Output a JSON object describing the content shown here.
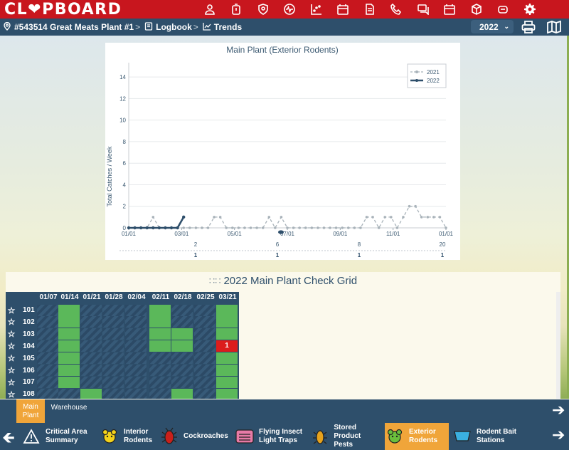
{
  "app": {
    "logo_text": "CL❤PBOARD"
  },
  "topbar": {
    "icons": [
      "person-icon",
      "timer-icon",
      "shield-icon",
      "pulse-icon",
      "scatter-chart-icon",
      "calendar-folder-icon",
      "document-icon",
      "phone-icon",
      "chat-icon",
      "calendar-icon",
      "cube-icon",
      "stack-icon",
      "gear-icon"
    ]
  },
  "breadcrumb": {
    "location": "#543514 Great Meats Plant #1",
    "logbook": "Logbook",
    "trends": "Trends",
    "separator": ">"
  },
  "year_select": {
    "value": "2022"
  },
  "chart": {
    "title": "Main Plant (Exterior Rodents)",
    "ylabel": "Total Catches / Week",
    "y_ticks": [
      "0",
      "2",
      "4",
      "6",
      "8",
      "10",
      "12",
      "14"
    ],
    "x_ticks": [
      "01/01",
      "03/01",
      "05/01",
      "07/01",
      "09/01",
      "11/01",
      "01/01"
    ],
    "extra_ticks": [
      "2",
      "6",
      "8",
      "20"
    ],
    "extra_values": [
      "1",
      "1",
      "1",
      "1"
    ],
    "legend": [
      "2021",
      "2022"
    ]
  },
  "chart_data": {
    "type": "line",
    "title": "Main Plant (Exterior Rodents)",
    "xlabel": "",
    "ylabel": "Total Catches / Week",
    "ylim": [
      0,
      15
    ],
    "legend_position": "top-right",
    "grid": true,
    "series": [
      {
        "name": "2021",
        "style": "dashed",
        "color": "#a9b3ba",
        "x": [
          "01/01",
          "01/08",
          "01/15",
          "01/22",
          "01/29",
          "02/05",
          "02/12",
          "02/19",
          "02/26",
          "03/05",
          "03/12",
          "03/19",
          "03/26",
          "04/02",
          "04/09",
          "04/16",
          "04/23",
          "04/30",
          "05/07",
          "05/14",
          "05/21",
          "05/28",
          "06/04",
          "06/11",
          "06/18",
          "06/25",
          "07/02",
          "07/09",
          "07/16",
          "07/23",
          "07/30",
          "08/06",
          "08/13",
          "08/20",
          "08/27",
          "09/03",
          "09/10",
          "09/17",
          "09/24",
          "10/01",
          "10/08",
          "10/15",
          "10/22",
          "10/29",
          "11/05",
          "11/12",
          "11/19",
          "11/26",
          "12/03",
          "12/10",
          "12/17",
          "12/24",
          "12/31"
        ],
        "values": [
          0,
          0,
          0,
          0,
          1,
          0,
          0,
          0,
          0,
          0,
          0,
          0,
          0,
          0,
          1,
          1,
          0,
          0,
          0,
          0,
          0,
          0,
          0,
          1,
          0,
          1,
          0,
          0,
          0,
          0,
          0,
          0,
          0,
          0,
          0,
          0,
          0,
          0,
          0,
          1,
          1,
          0,
          1,
          1,
          0,
          1,
          2,
          2,
          1,
          1,
          1,
          1,
          0
        ]
      },
      {
        "name": "2022",
        "style": "solid",
        "color": "#2e4f6b",
        "x": [
          "01/01",
          "01/08",
          "01/15",
          "01/22",
          "01/29",
          "02/05",
          "02/12",
          "02/19",
          "02/26",
          "03/05"
        ],
        "values": [
          0,
          0,
          0,
          0,
          0,
          0,
          0,
          0,
          0,
          1
        ]
      }
    ]
  },
  "grid": {
    "title": "2022 Main Plant Check Grid",
    "columns": [
      "01/07",
      "01/14",
      "01/21",
      "01/28",
      "02/04",
      "02/11",
      "02/18",
      "02/25",
      "03/21"
    ],
    "rows": [
      {
        "id": "101",
        "cells": [
          "stripe",
          "green",
          "stripe",
          "stripe",
          "stripe",
          "green",
          "stripe",
          "stripe",
          "green"
        ]
      },
      {
        "id": "102",
        "cells": [
          "stripe",
          "green",
          "stripe",
          "stripe",
          "stripe",
          "green",
          "stripe",
          "stripe",
          "green"
        ]
      },
      {
        "id": "103",
        "cells": [
          "stripe",
          "green",
          "stripe",
          "stripe",
          "stripe",
          "green",
          "green",
          "stripe",
          "green"
        ]
      },
      {
        "id": "104",
        "cells": [
          "stripe",
          "green",
          "stripe",
          "stripe",
          "stripe",
          "green",
          "green",
          "stripe",
          "red:1"
        ]
      },
      {
        "id": "105",
        "cells": [
          "stripe",
          "green",
          "stripe",
          "stripe",
          "stripe",
          "stripe",
          "stripe",
          "stripe",
          "green"
        ]
      },
      {
        "id": "106",
        "cells": [
          "stripe",
          "green",
          "stripe",
          "stripe",
          "stripe",
          "stripe",
          "stripe",
          "stripe",
          "green"
        ]
      },
      {
        "id": "107",
        "cells": [
          "stripe",
          "green",
          "stripe",
          "stripe",
          "stripe",
          "stripe",
          "stripe",
          "stripe",
          "green"
        ]
      },
      {
        "id": "108",
        "cells": [
          "stripe",
          "stripe",
          "green",
          "stripe",
          "stripe",
          "stripe",
          "green",
          "stripe",
          "green"
        ]
      }
    ],
    "colors": {
      "stripe_dark": "#2c4a66",
      "stripe_light": "#375a78",
      "green": "#5bb85a",
      "red": "#dc1c1c"
    }
  },
  "locations": {
    "tabs": [
      "Main Plant",
      "Warehouse"
    ],
    "active": "Main Plant"
  },
  "categories": {
    "items": [
      {
        "label": "Critical Area Summary",
        "icon": "warning-icon"
      },
      {
        "label": "Interior Rodents",
        "icon": "interior-rodent-icon"
      },
      {
        "label": "Cockroaches",
        "icon": "cockroach-icon"
      },
      {
        "label": "Flying Insect Light Traps",
        "icon": "light-trap-icon"
      },
      {
        "label": "Stored Product Pests",
        "icon": "stored-pest-icon"
      },
      {
        "label": "Exterior Rodents",
        "icon": "exterior-rodent-icon"
      },
      {
        "label": "Rodent Bait Stations",
        "icon": "bait-station-icon"
      }
    ],
    "active": "Exterior Rodents"
  }
}
